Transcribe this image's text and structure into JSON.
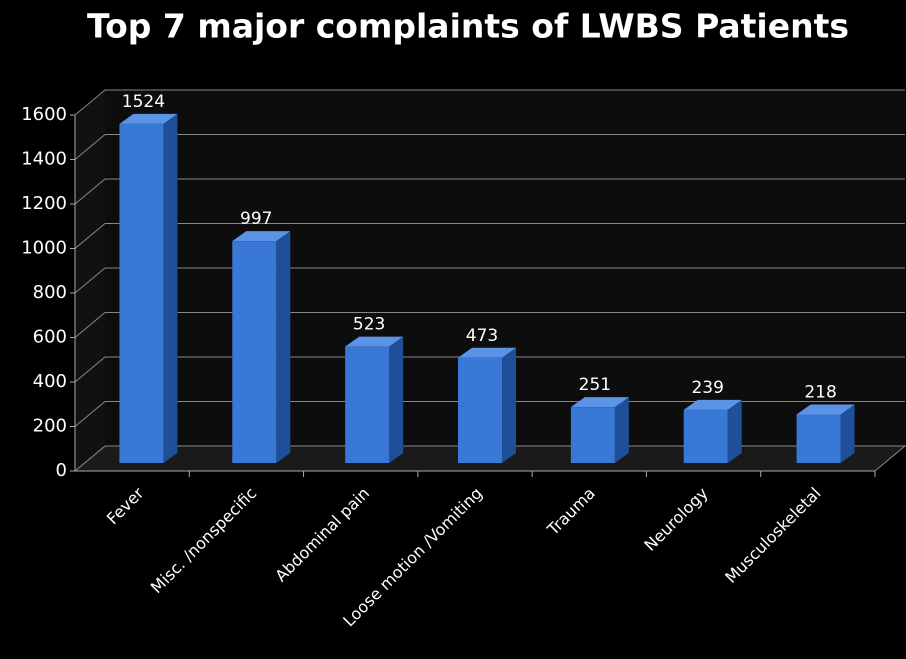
{
  "chart_data": {
    "type": "bar",
    "title": "Top 7 major complaints of LWBS Patients",
    "categories": [
      "Fever",
      "Misc. /nonspecific",
      "Abdominal pain",
      "Loose motion /Vomiting",
      "Trauma",
      "Neurology",
      "Musculoskeletal"
    ],
    "values": [
      1524,
      997,
      523,
      473,
      251,
      239,
      218
    ],
    "color": "#3a78d6",
    "ylim": [
      0,
      1600
    ],
    "yticks": [
      0,
      200,
      400,
      600,
      800,
      1000,
      1200,
      1400,
      1600
    ],
    "grid": true
  }
}
